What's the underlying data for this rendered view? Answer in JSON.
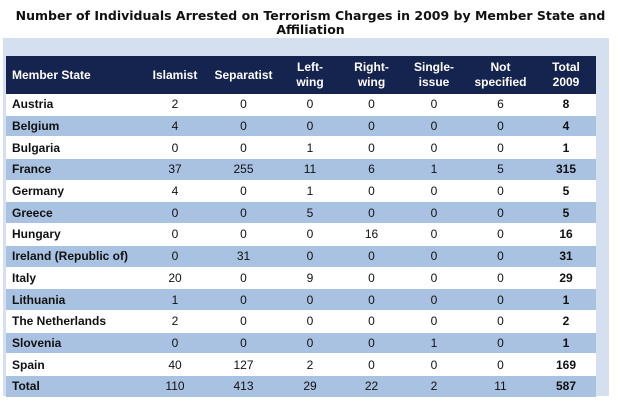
{
  "title_line1": "Number of Individuals Arrested on Terrorism Charges in 2009 by Member State and",
  "title_line2": "Affiliation",
  "headers": [
    [
      "Member State"
    ],
    [
      "Islamist"
    ],
    [
      "Separatist"
    ],
    [
      "Left-",
      "wing"
    ],
    [
      "Right-",
      "wing"
    ],
    [
      "Single-",
      "issue"
    ],
    [
      "Not",
      "specified"
    ],
    [
      "Total",
      "2009"
    ]
  ],
  "rows": [
    [
      "Austria",
      "2",
      "0",
      "0",
      "0",
      "0",
      "6",
      "8"
    ],
    [
      "Belgium",
      "4",
      "0",
      "0",
      "0",
      "0",
      "0",
      "4"
    ],
    [
      "Bulgaria",
      "0",
      "0",
      "1",
      "0",
      "0",
      "0",
      "1"
    ],
    [
      "France",
      "37",
      "255",
      "11",
      "6",
      "1",
      "5",
      "315"
    ],
    [
      "Germany",
      "4",
      "0",
      "1",
      "0",
      "0",
      "0",
      "5"
    ],
    [
      "Greece",
      "0",
      "0",
      "5",
      "0",
      "0",
      "0",
      "5"
    ],
    [
      "Hungary",
      "0",
      "0",
      "0",
      "16",
      "0",
      "0",
      "16"
    ],
    [
      "Ireland (Republic of)",
      "0",
      "31",
      "0",
      "0",
      "0",
      "0",
      "31"
    ],
    [
      "Italy",
      "20",
      "0",
      "9",
      "0",
      "0",
      "0",
      "29"
    ],
    [
      "Lithuania",
      "1",
      "0",
      "0",
      "0",
      "0",
      "0",
      "1"
    ],
    [
      "The Netherlands",
      "2",
      "0",
      "0",
      "0",
      "0",
      "0",
      "2"
    ],
    [
      "Slovenia",
      "0",
      "0",
      "0",
      "0",
      "1",
      "0",
      "1"
    ],
    [
      "Spain",
      "40",
      "127",
      "2",
      "0",
      "0",
      "0",
      "169"
    ],
    [
      "Total",
      "110",
      "413",
      "29",
      "22",
      "2",
      "11",
      "587"
    ]
  ]
}
